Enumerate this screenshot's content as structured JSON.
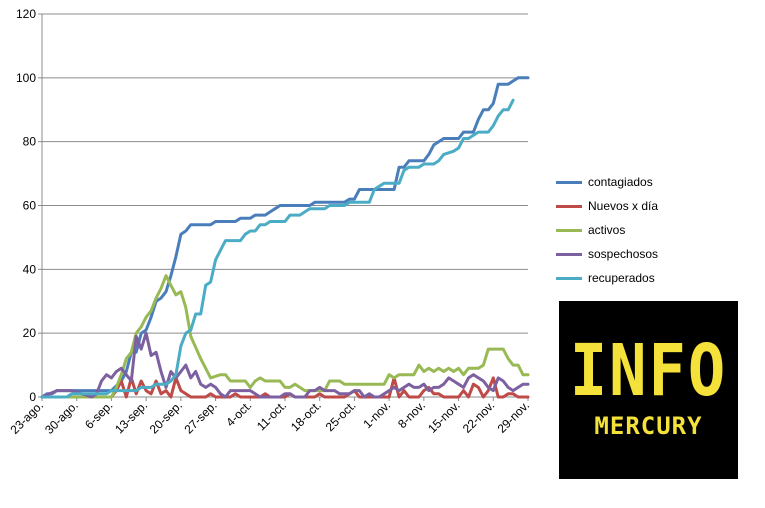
{
  "chart_data": {
    "type": "line",
    "title": "",
    "xlabel": "",
    "ylabel": "",
    "ylim": [
      0,
      120
    ],
    "y_ticks": [
      0,
      20,
      40,
      60,
      80,
      100,
      120
    ],
    "grid": "horizontal",
    "legend_position": "right",
    "x_start": "2020-08-23",
    "x_tick_labels": [
      "23-ago.",
      "30-ago.",
      "6-sep.",
      "13-sep.",
      "20-sep.",
      "27-sep.",
      "4-oct.",
      "11-oct.",
      "18-oct.",
      "25-oct.",
      "1-nov.",
      "8-nov.",
      "15-nov.",
      "22-nov.",
      "29-nov."
    ],
    "series": [
      {
        "name": "contagiados",
        "color": "#4a7ebb",
        "points": [
          [
            0,
            0
          ],
          [
            1,
            1
          ],
          [
            2,
            1
          ],
          [
            3,
            2
          ],
          [
            5,
            2
          ],
          [
            10,
            2
          ],
          [
            14,
            2
          ],
          [
            16,
            5
          ],
          [
            17,
            8
          ],
          [
            18,
            14
          ],
          [
            19,
            14
          ],
          [
            20,
            20
          ],
          [
            21,
            21
          ],
          [
            22,
            25
          ],
          [
            23,
            30
          ],
          [
            24,
            31
          ],
          [
            25,
            33
          ],
          [
            26,
            38
          ],
          [
            27,
            44
          ],
          [
            28,
            51
          ],
          [
            29,
            52
          ],
          [
            30,
            54
          ],
          [
            34,
            54
          ],
          [
            35,
            55
          ],
          [
            39,
            55
          ],
          [
            40,
            56
          ],
          [
            42,
            56
          ],
          [
            43,
            57
          ],
          [
            45,
            57
          ],
          [
            46,
            58
          ],
          [
            47,
            59
          ],
          [
            48,
            60
          ],
          [
            54,
            60
          ],
          [
            55,
            61
          ],
          [
            61,
            61
          ],
          [
            62,
            62
          ],
          [
            63,
            62
          ],
          [
            64,
            65
          ],
          [
            71,
            65
          ],
          [
            72,
            72
          ],
          [
            73,
            72
          ],
          [
            74,
            74
          ],
          [
            77,
            74
          ],
          [
            78,
            76
          ],
          [
            79,
            79
          ],
          [
            80,
            80
          ],
          [
            81,
            81
          ],
          [
            84,
            81
          ],
          [
            85,
            83
          ],
          [
            87,
            83
          ],
          [
            88,
            87
          ],
          [
            89,
            90
          ],
          [
            90,
            90
          ],
          [
            91,
            92
          ],
          [
            92,
            98
          ],
          [
            94,
            98
          ],
          [
            95,
            99
          ],
          [
            96,
            100
          ],
          [
            98,
            100
          ]
        ]
      },
      {
        "name": "Nuevos x día",
        "color": "#be4b48",
        "points": [
          [
            0,
            0
          ],
          [
            14,
            0
          ],
          [
            15,
            2
          ],
          [
            16,
            5
          ],
          [
            17,
            0
          ],
          [
            18,
            6
          ],
          [
            19,
            1
          ],
          [
            20,
            5
          ],
          [
            21,
            2
          ],
          [
            22,
            1
          ],
          [
            23,
            5
          ],
          [
            24,
            1
          ],
          [
            25,
            2
          ],
          [
            26,
            0
          ],
          [
            27,
            6
          ],
          [
            28,
            2
          ],
          [
            29,
            1
          ],
          [
            30,
            0
          ],
          [
            33,
            0
          ],
          [
            34,
            1
          ],
          [
            35,
            0
          ],
          [
            38,
            0
          ],
          [
            39,
            1
          ],
          [
            40,
            0
          ],
          [
            44,
            0
          ],
          [
            45,
            1
          ],
          [
            46,
            0
          ],
          [
            49,
            0
          ],
          [
            50,
            1
          ],
          [
            51,
            0
          ],
          [
            55,
            0
          ],
          [
            56,
            1
          ],
          [
            57,
            0
          ],
          [
            61,
            0
          ],
          [
            62,
            1
          ],
          [
            63,
            2
          ],
          [
            64,
            0
          ],
          [
            70,
            0
          ],
          [
            71,
            6
          ],
          [
            72,
            0
          ],
          [
            73,
            2
          ],
          [
            74,
            0
          ],
          [
            76,
            0
          ],
          [
            77,
            2
          ],
          [
            78,
            3
          ],
          [
            79,
            1
          ],
          [
            80,
            1
          ],
          [
            81,
            0
          ],
          [
            84,
            0
          ],
          [
            85,
            2
          ],
          [
            86,
            0
          ],
          [
            87,
            4
          ],
          [
            88,
            3
          ],
          [
            89,
            0
          ],
          [
            90,
            2
          ],
          [
            91,
            6
          ],
          [
            92,
            0
          ],
          [
            93,
            0
          ],
          [
            94,
            1
          ],
          [
            95,
            1
          ],
          [
            96,
            0
          ],
          [
            98,
            0
          ]
        ]
      },
      {
        "name": "activos",
        "color": "#98b954",
        "points": [
          [
            0,
            0
          ],
          [
            14,
            0
          ],
          [
            15,
            3
          ],
          [
            16,
            7
          ],
          [
            17,
            12
          ],
          [
            18,
            14
          ],
          [
            19,
            20
          ],
          [
            20,
            22
          ],
          [
            21,
            25
          ],
          [
            22,
            27
          ],
          [
            23,
            31
          ],
          [
            24,
            34
          ],
          [
            25,
            38
          ],
          [
            26,
            35
          ],
          [
            27,
            32
          ],
          [
            28,
            33
          ],
          [
            29,
            28
          ],
          [
            30,
            19
          ],
          [
            32,
            12
          ],
          [
            33,
            9
          ],
          [
            34,
            6
          ],
          [
            36,
            7
          ],
          [
            37,
            7
          ],
          [
            38,
            5
          ],
          [
            41,
            5
          ],
          [
            42,
            3
          ],
          [
            43,
            5
          ],
          [
            44,
            6
          ],
          [
            45,
            5
          ],
          [
            48,
            5
          ],
          [
            49,
            3
          ],
          [
            50,
            3
          ],
          [
            51,
            4
          ],
          [
            52,
            3
          ],
          [
            53,
            2
          ],
          [
            57,
            2
          ],
          [
            58,
            5
          ],
          [
            60,
            5
          ],
          [
            61,
            4
          ],
          [
            69,
            4
          ],
          [
            70,
            7
          ],
          [
            71,
            6
          ],
          [
            72,
            7
          ],
          [
            75,
            7
          ],
          [
            76,
            10
          ],
          [
            77,
            8
          ],
          [
            78,
            9
          ],
          [
            79,
            8
          ],
          [
            80,
            9
          ],
          [
            81,
            8
          ],
          [
            82,
            9
          ],
          [
            83,
            8
          ],
          [
            84,
            9
          ],
          [
            85,
            7
          ],
          [
            86,
            9
          ],
          [
            88,
            9
          ],
          [
            89,
            10
          ],
          [
            90,
            15
          ],
          [
            93,
            15
          ],
          [
            94,
            12
          ],
          [
            95,
            10
          ],
          [
            96,
            10
          ],
          [
            97,
            7
          ],
          [
            98,
            7
          ]
        ]
      },
      {
        "name": "sospechosos",
        "color": "#7d60a0",
        "points": [
          [
            0,
            0
          ],
          [
            3,
            2
          ],
          [
            6,
            2
          ],
          [
            10,
            0
          ],
          [
            11,
            1
          ],
          [
            12,
            5
          ],
          [
            13,
            7
          ],
          [
            14,
            6
          ],
          [
            15,
            8
          ],
          [
            16,
            9
          ],
          [
            17,
            7
          ],
          [
            18,
            5
          ],
          [
            19,
            19
          ],
          [
            20,
            15
          ],
          [
            21,
            20
          ],
          [
            22,
            13
          ],
          [
            23,
            14
          ],
          [
            24,
            8
          ],
          [
            25,
            3
          ],
          [
            26,
            8
          ],
          [
            27,
            6
          ],
          [
            28,
            8
          ],
          [
            29,
            10
          ],
          [
            30,
            6
          ],
          [
            31,
            8
          ],
          [
            32,
            4
          ],
          [
            33,
            3
          ],
          [
            34,
            4
          ],
          [
            35,
            3
          ],
          [
            36,
            1
          ],
          [
            37,
            0
          ],
          [
            38,
            2
          ],
          [
            39,
            2
          ],
          [
            40,
            2
          ],
          [
            42,
            2
          ],
          [
            43,
            1
          ],
          [
            44,
            0
          ],
          [
            48,
            0
          ],
          [
            49,
            1
          ],
          [
            50,
            1
          ],
          [
            51,
            0
          ],
          [
            53,
            0
          ],
          [
            54,
            2
          ],
          [
            55,
            2
          ],
          [
            56,
            3
          ],
          [
            57,
            2
          ],
          [
            59,
            2
          ],
          [
            60,
            1
          ],
          [
            62,
            1
          ],
          [
            63,
            2
          ],
          [
            64,
            2
          ],
          [
            65,
            0
          ],
          [
            66,
            1
          ],
          [
            67,
            0
          ],
          [
            68,
            0
          ],
          [
            69,
            1
          ],
          [
            70,
            2
          ],
          [
            71,
            3
          ],
          [
            72,
            2
          ],
          [
            73,
            3
          ],
          [
            74,
            4
          ],
          [
            75,
            3
          ],
          [
            76,
            3
          ],
          [
            77,
            4
          ],
          [
            78,
            2
          ],
          [
            79,
            3
          ],
          [
            80,
            3
          ],
          [
            81,
            4
          ],
          [
            82,
            6
          ],
          [
            83,
            5
          ],
          [
            84,
            4
          ],
          [
            85,
            3
          ],
          [
            86,
            6
          ],
          [
            87,
            7
          ],
          [
            88,
            6
          ],
          [
            89,
            5
          ],
          [
            90,
            3
          ],
          [
            91,
            2
          ],
          [
            92,
            6
          ],
          [
            93,
            5
          ],
          [
            94,
            3
          ],
          [
            95,
            2
          ],
          [
            96,
            3
          ],
          [
            97,
            4
          ],
          [
            98,
            4
          ]
        ]
      },
      {
        "name": "recuperados",
        "color": "#4bacc6",
        "points": [
          [
            0,
            0
          ],
          [
            5,
            0
          ],
          [
            6,
            1
          ],
          [
            13,
            1
          ],
          [
            14,
            2
          ],
          [
            19,
            2
          ],
          [
            20,
            3
          ],
          [
            22,
            3
          ],
          [
            23,
            4
          ],
          [
            25,
            4
          ],
          [
            26,
            5
          ],
          [
            27,
            7
          ],
          [
            28,
            16
          ],
          [
            29,
            20
          ],
          [
            30,
            21
          ],
          [
            31,
            26
          ],
          [
            32,
            26
          ],
          [
            33,
            35
          ],
          [
            34,
            36
          ],
          [
            35,
            43
          ],
          [
            36,
            46
          ],
          [
            37,
            49
          ],
          [
            40,
            49
          ],
          [
            41,
            51
          ],
          [
            42,
            52
          ],
          [
            43,
            52
          ],
          [
            44,
            54
          ],
          [
            45,
            54
          ],
          [
            46,
            55
          ],
          [
            49,
            55
          ],
          [
            50,
            57
          ],
          [
            52,
            57
          ],
          [
            53,
            58
          ],
          [
            54,
            59
          ],
          [
            57,
            59
          ],
          [
            58,
            60
          ],
          [
            61,
            60
          ],
          [
            62,
            61
          ],
          [
            66,
            61
          ],
          [
            67,
            65
          ],
          [
            68,
            66
          ],
          [
            69,
            67
          ],
          [
            72,
            67
          ],
          [
            73,
            71
          ],
          [
            74,
            72
          ],
          [
            76,
            72
          ],
          [
            77,
            73
          ],
          [
            79,
            73
          ],
          [
            80,
            74
          ],
          [
            81,
            76
          ],
          [
            83,
            77
          ],
          [
            84,
            78
          ],
          [
            85,
            81
          ],
          [
            86,
            81
          ],
          [
            87,
            82
          ],
          [
            88,
            83
          ],
          [
            90,
            83
          ],
          [
            91,
            85
          ],
          [
            92,
            88
          ],
          [
            93,
            90
          ],
          [
            94,
            90
          ],
          [
            95,
            93
          ]
        ]
      }
    ]
  },
  "logo": {
    "line1": "INFO",
    "line2": "MERCURY"
  }
}
